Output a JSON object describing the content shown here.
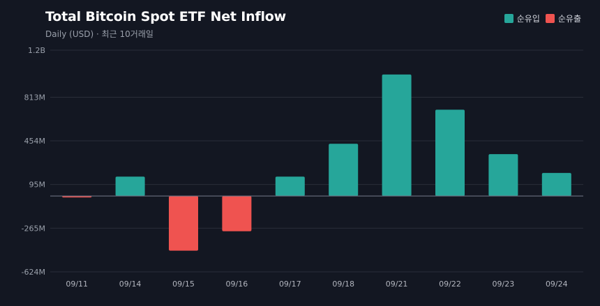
{
  "header": {
    "title": "Total Bitcoin Spot ETF Net Inflow",
    "subtitle": "Daily (USD) · 최근 10거래일"
  },
  "legend": {
    "inflow_label": "순유입",
    "outflow_label": "순유출"
  },
  "colors": {
    "inflow": "#26a69a",
    "outflow": "#ef5350",
    "background": "#131722",
    "grid": "#2a2e39"
  },
  "chart_data": {
    "type": "bar",
    "title": "Total Bitcoin Spot ETF Net Inflow",
    "subtitle": "Daily (USD) · 최근 10거래일",
    "xlabel": "",
    "ylabel": "",
    "unit": "USD",
    "categories": [
      "09/11",
      "09/14",
      "09/15",
      "09/16",
      "09/17",
      "09/18",
      "09/21",
      "09/22",
      "09/23",
      "09/24"
    ],
    "values": [
      -8000000,
      160000000,
      -450000000,
      -290000000,
      160000000,
      430000000,
      1000000000,
      710000000,
      345000000,
      190000000
    ],
    "ylim": [
      -624000000,
      1200000000
    ],
    "yticks": [
      1200000000,
      813000000,
      454000000,
      95000000,
      -265000000,
      -624000000
    ],
    "ytick_labels": [
      "1.2B",
      "813M",
      "454M",
      "95M",
      "-265M",
      "-624M"
    ],
    "grid": true,
    "legend_position": "top-right",
    "series": [
      {
        "name": "순유입",
        "sign": "positive"
      },
      {
        "name": "순유출",
        "sign": "negative"
      }
    ]
  }
}
